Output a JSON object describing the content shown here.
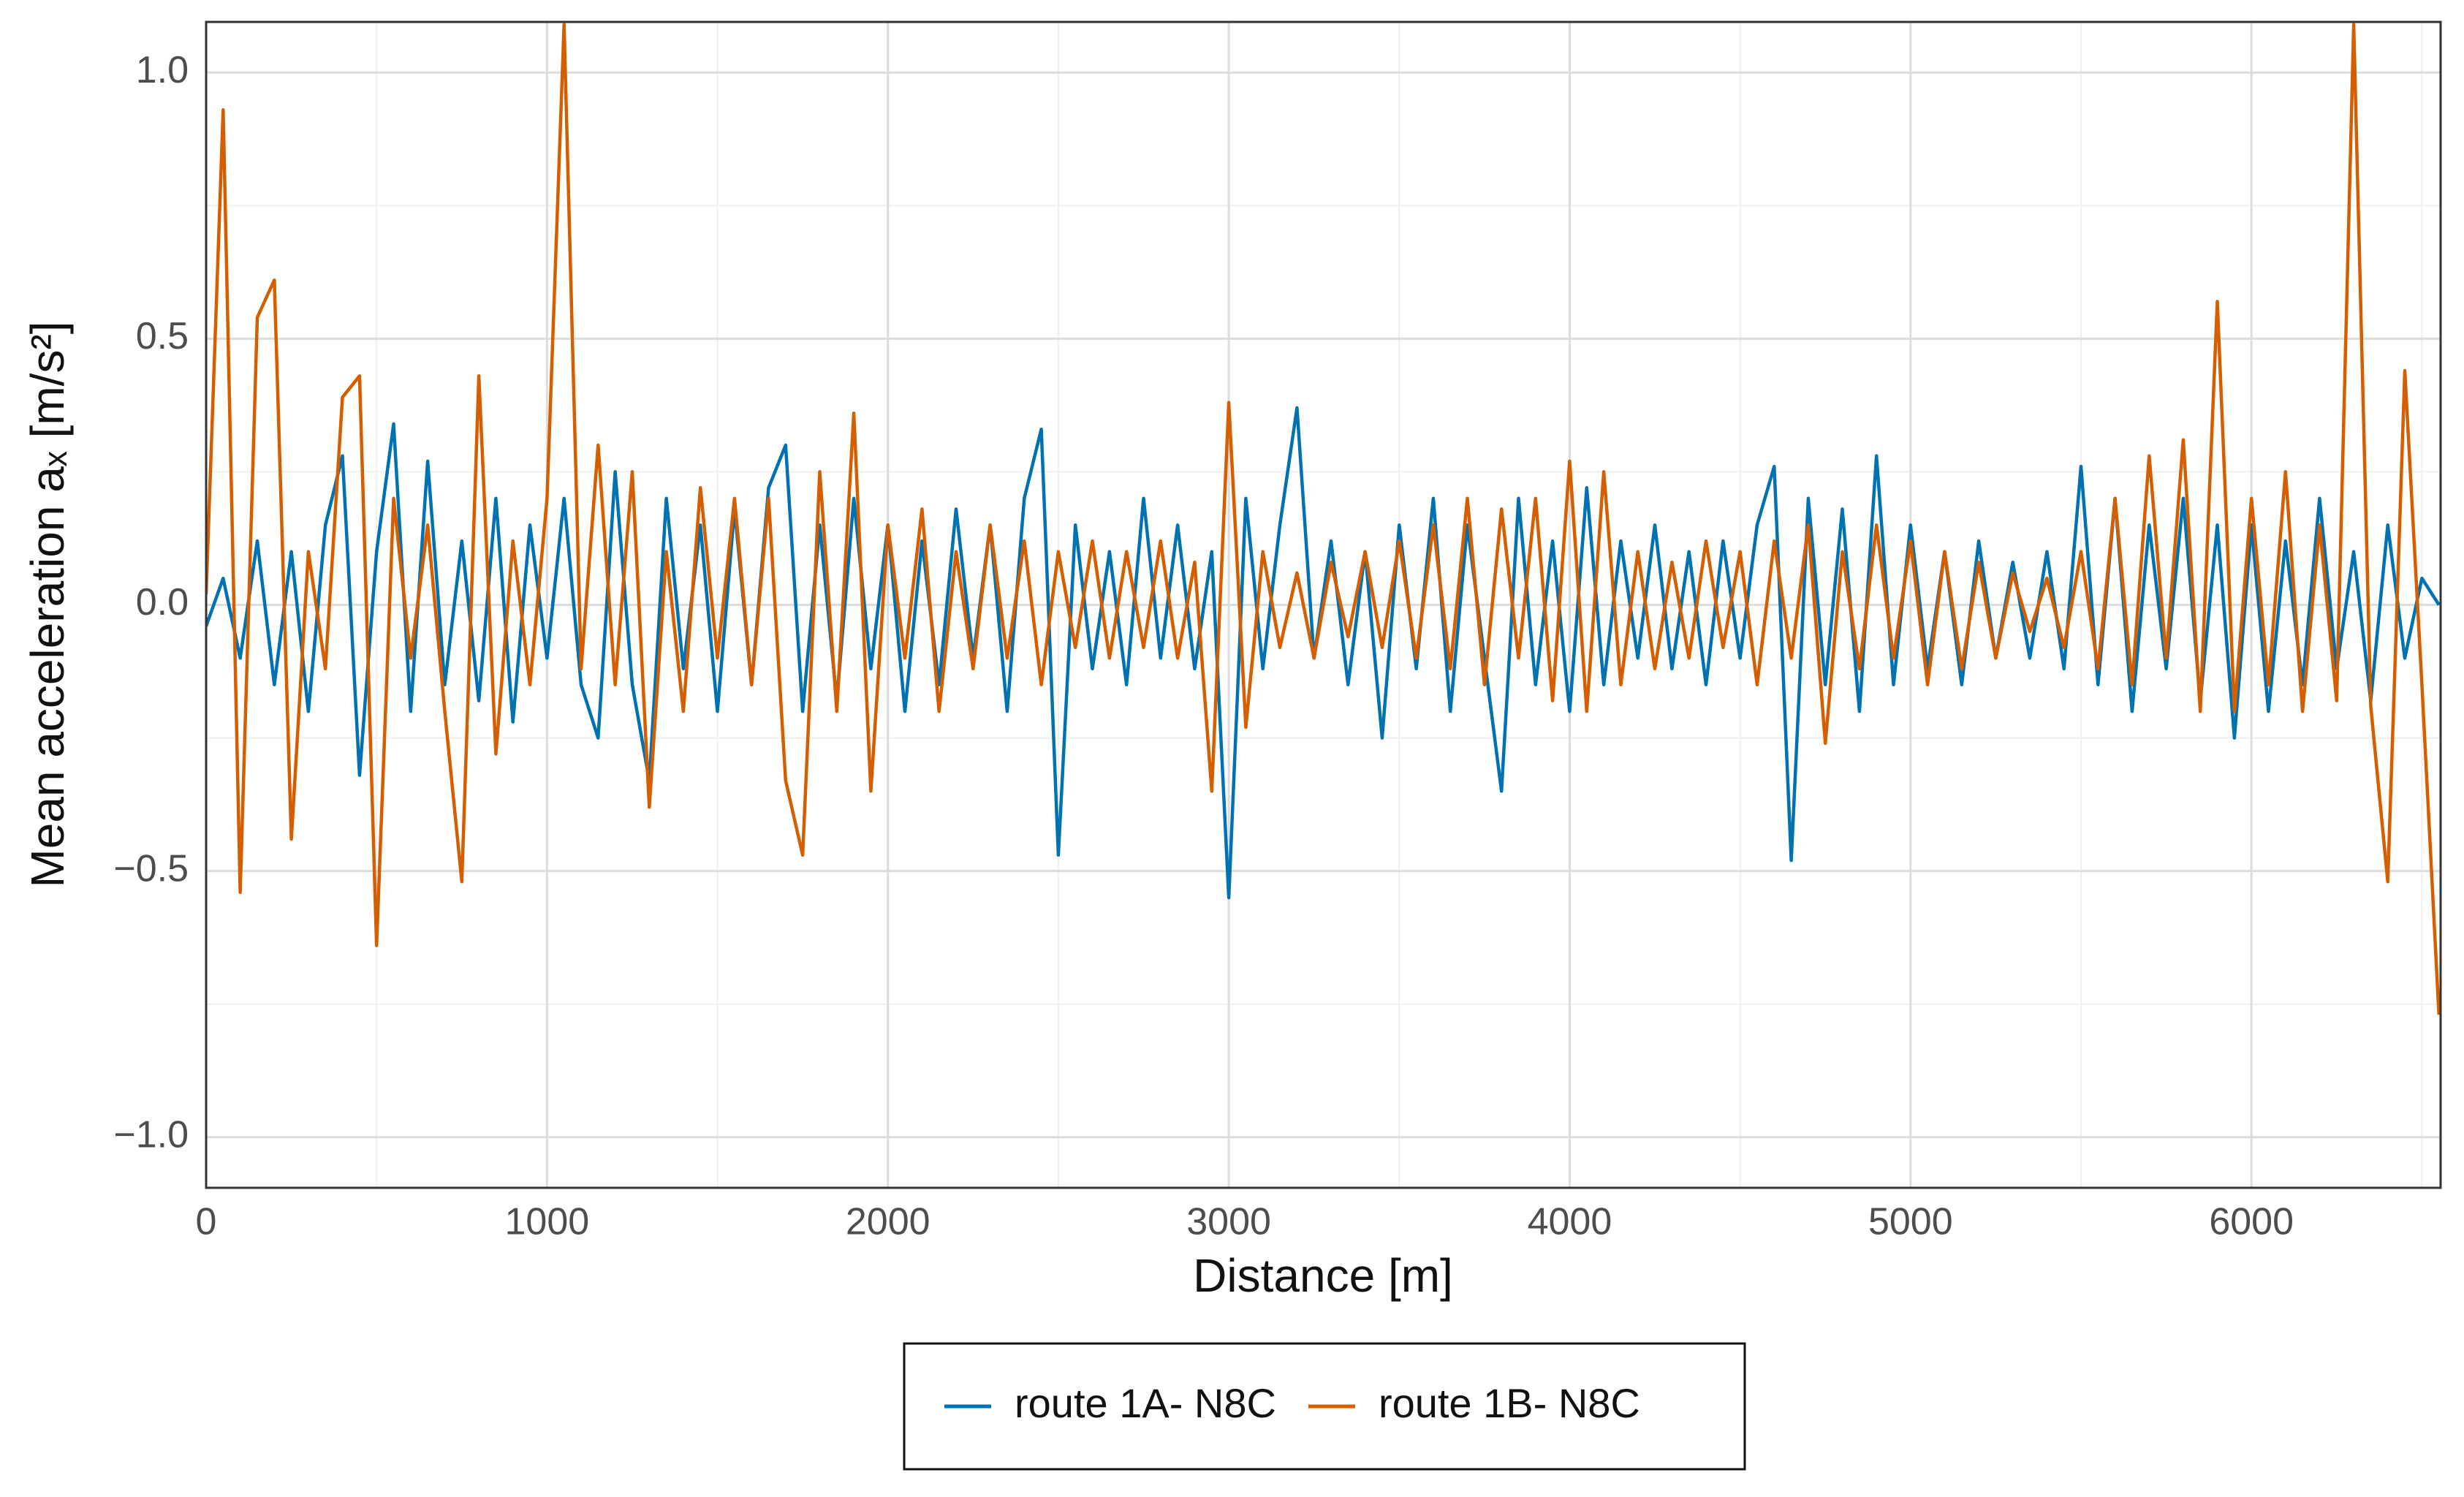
{
  "chart_data": {
    "type": "line",
    "xlabel": "Distance [m]",
    "ylabel": "Mean acceleration aₓ [m/s²]",
    "xlim": [
      0,
      6555
    ],
    "ylim": [
      -1.095,
      1.095
    ],
    "xticks": [
      0,
      1000,
      2000,
      3000,
      4000,
      5000,
      6000
    ],
    "xminorticks": [
      500,
      1500,
      2500,
      3500,
      4500,
      5500,
      6500
    ],
    "yticks": [
      {
        "value": -1.0,
        "label": "−1.0"
      },
      {
        "value": -0.5,
        "label": "−0.5"
      },
      {
        "value": 0.0,
        "label": "0.0"
      },
      {
        "value": 0.5,
        "label": "0.5"
      },
      {
        "value": 1.0,
        "label": "1.0"
      }
    ],
    "yminorticks": [
      -0.75,
      -0.25,
      0.25,
      0.75
    ],
    "grid": true,
    "legend": "bottom",
    "x": [
      0,
      50,
      100,
      150,
      200,
      250,
      300,
      350,
      400,
      450,
      500,
      550,
      600,
      650,
      700,
      750,
      800,
      850,
      900,
      950,
      1000,
      1050,
      1100,
      1150,
      1200,
      1250,
      1300,
      1350,
      1400,
      1450,
      1500,
      1550,
      1600,
      1650,
      1700,
      1750,
      1800,
      1850,
      1900,
      1950,
      2000,
      2050,
      2100,
      2150,
      2200,
      2250,
      2300,
      2350,
      2400,
      2450,
      2500,
      2550,
      2600,
      2650,
      2700,
      2750,
      2800,
      2850,
      2900,
      2950,
      3000,
      3050,
      3100,
      3150,
      3200,
      3250,
      3300,
      3350,
      3400,
      3450,
      3500,
      3550,
      3600,
      3650,
      3700,
      3750,
      3800,
      3850,
      3900,
      3950,
      4000,
      4050,
      4100,
      4150,
      4200,
      4250,
      4300,
      4350,
      4400,
      4450,
      4500,
      4550,
      4600,
      4650,
      4700,
      4750,
      4800,
      4850,
      4900,
      4950,
      5000,
      5050,
      5100,
      5150,
      5200,
      5250,
      5300,
      5350,
      5400,
      5450,
      5500,
      5550,
      5600,
      5650,
      5700,
      5750,
      5800,
      5850,
      5900,
      5950,
      6000,
      6050,
      6100,
      6150,
      6200,
      6250,
      6300,
      6350,
      6400,
      6450,
      6500,
      6550
    ],
    "series": [
      {
        "name": "route 1A- N8C",
        "color": "#0072b2",
        "values": [
          -0.04,
          0.05,
          -0.1,
          0.12,
          -0.15,
          0.1,
          -0.2,
          0.15,
          0.28,
          -0.32,
          0.1,
          0.34,
          -0.2,
          0.27,
          -0.15,
          0.12,
          -0.18,
          0.2,
          -0.22,
          0.15,
          -0.1,
          0.2,
          -0.15,
          -0.25,
          0.25,
          -0.15,
          -0.33,
          0.2,
          -0.12,
          0.15,
          -0.2,
          0.18,
          -0.15,
          0.22,
          0.3,
          -0.2,
          0.15,
          -0.18,
          0.2,
          -0.12,
          0.15,
          -0.2,
          0.12,
          -0.15,
          0.18,
          -0.1,
          0.15,
          -0.2,
          0.2,
          0.33,
          -0.47,
          0.15,
          -0.12,
          0.1,
          -0.15,
          0.2,
          -0.1,
          0.15,
          -0.12,
          0.1,
          -0.55,
          0.2,
          -0.12,
          0.15,
          0.37,
          -0.1,
          0.12,
          -0.15,
          0.1,
          -0.25,
          0.15,
          -0.12,
          0.2,
          -0.2,
          0.15,
          -0.1,
          -0.35,
          0.2,
          -0.15,
          0.12,
          -0.2,
          0.22,
          -0.15,
          0.12,
          -0.1,
          0.15,
          -0.12,
          0.1,
          -0.15,
          0.12,
          -0.1,
          0.15,
          0.26,
          -0.48,
          0.2,
          -0.15,
          0.18,
          -0.2,
          0.28,
          -0.15,
          0.15,
          -0.12,
          0.1,
          -0.15,
          0.12,
          -0.1,
          0.08,
          -0.1,
          0.1,
          -0.12,
          0.26,
          -0.15,
          0.2,
          -0.2,
          0.15,
          -0.12,
          0.2,
          -0.18,
          0.15,
          -0.25,
          0.15,
          -0.2,
          0.12,
          -0.15,
          0.2,
          -0.12,
          0.1,
          -0.18,
          0.15,
          -0.1,
          0.05,
          0.0
        ]
      },
      {
        "name": "route 1B- N8C",
        "color": "#d55e00",
        "values": [
          0.02,
          0.93,
          -0.54,
          0.54,
          0.61,
          -0.44,
          0.1,
          -0.12,
          0.39,
          0.43,
          -0.64,
          0.2,
          -0.1,
          0.15,
          -0.2,
          -0.52,
          0.43,
          -0.28,
          0.12,
          -0.15,
          0.2,
          1.09,
          -0.12,
          0.3,
          -0.15,
          0.25,
          -0.38,
          0.1,
          -0.2,
          0.22,
          -0.1,
          0.2,
          -0.15,
          0.2,
          -0.33,
          -0.47,
          0.25,
          -0.2,
          0.36,
          -0.35,
          0.15,
          -0.1,
          0.18,
          -0.2,
          0.1,
          -0.12,
          0.15,
          -0.1,
          0.12,
          -0.15,
          0.1,
          -0.08,
          0.12,
          -0.1,
          0.1,
          -0.08,
          0.12,
          -0.1,
          0.08,
          -0.35,
          0.38,
          -0.23,
          0.1,
          -0.08,
          0.06,
          -0.1,
          0.08,
          -0.06,
          0.1,
          -0.08,
          0.12,
          -0.1,
          0.15,
          -0.12,
          0.2,
          -0.15,
          0.18,
          -0.1,
          0.2,
          -0.18,
          0.27,
          -0.2,
          0.25,
          -0.15,
          0.1,
          -0.12,
          0.08,
          -0.1,
          0.12,
          -0.08,
          0.1,
          -0.15,
          0.12,
          -0.1,
          0.15,
          -0.26,
          0.1,
          -0.12,
          0.15,
          -0.1,
          0.12,
          -0.15,
          0.1,
          -0.12,
          0.08,
          -0.1,
          0.06,
          -0.05,
          0.05,
          -0.08,
          0.1,
          -0.12,
          0.2,
          -0.15,
          0.28,
          -0.1,
          0.31,
          -0.2,
          0.57,
          -0.2,
          0.2,
          -0.15,
          0.25,
          -0.2,
          0.15,
          -0.18,
          1.09,
          -0.19,
          -0.52,
          0.44,
          -0.15,
          -0.77
        ]
      }
    ]
  }
}
